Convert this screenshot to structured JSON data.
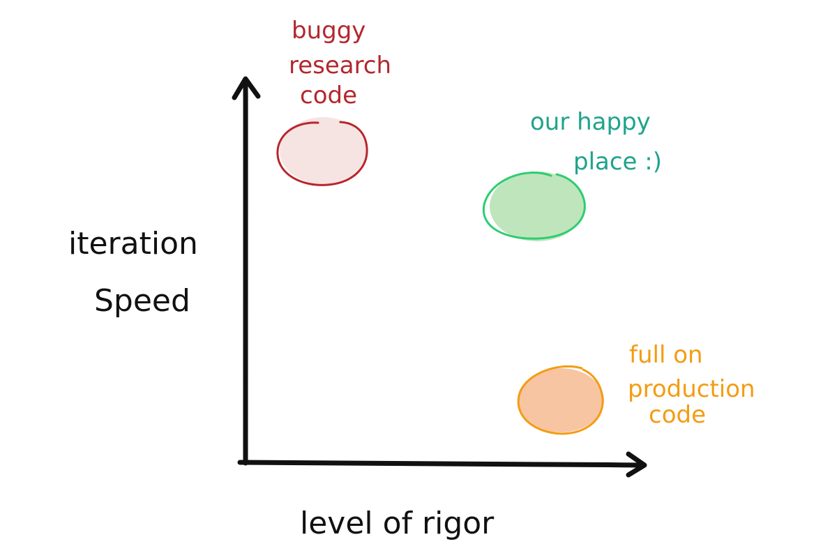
{
  "axes": {
    "y_label_line1": "iteration",
    "y_label_line2": "Speed",
    "x_label": "level of rigor"
  },
  "regions": [
    {
      "id": "research",
      "label_lines": [
        "buggy",
        "research",
        "code"
      ],
      "text_color": "#b3272d",
      "stroke_color": "#b8262c",
      "fill_color": "#f6e4e2"
    },
    {
      "id": "happy",
      "label_lines": [
        "our happy",
        "place :)"
      ],
      "text_color": "#1fa38c",
      "stroke_color": "#2ecc71",
      "fill_color": "#bfe5bc"
    },
    {
      "id": "production",
      "label_lines": [
        "full on",
        "production",
        "code"
      ],
      "text_color": "#f39c12",
      "stroke_color": "#f39c12",
      "fill_color": "#f7c5a2"
    }
  ]
}
